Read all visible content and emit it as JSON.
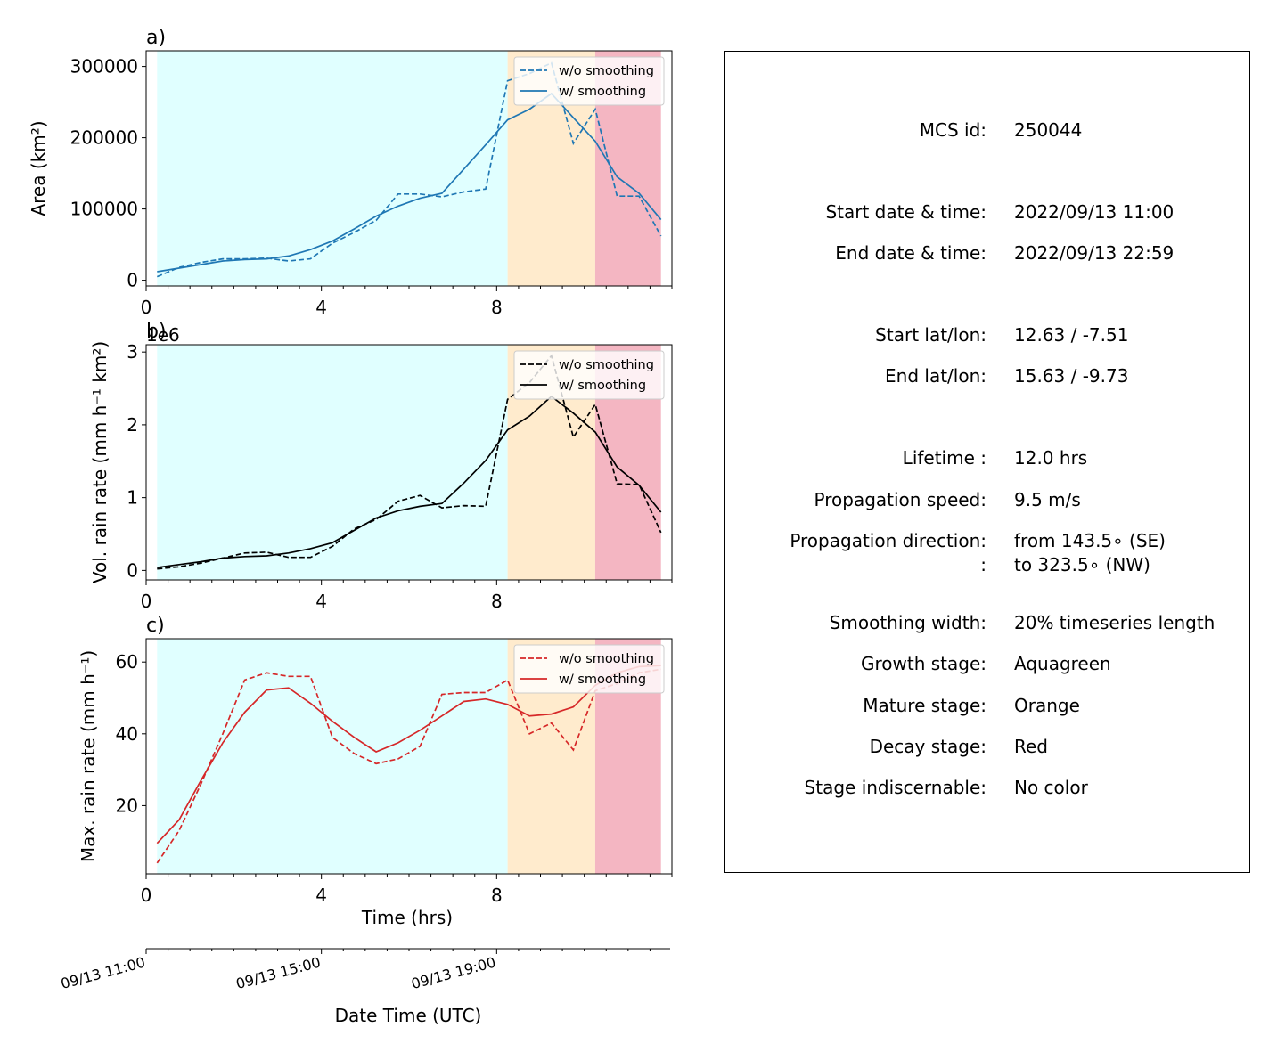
{
  "figure": {
    "time_axis": {
      "label": "Time (hrs)",
      "ticks": [
        0,
        4,
        8
      ],
      "lim": [
        0,
        12
      ]
    },
    "date_axis": {
      "label": "Date Time (UTC)",
      "ticks": [
        "09/13 11:00",
        "09/13 15:00",
        "09/13 19:00"
      ]
    },
    "stages": [
      {
        "name": "Growth stage",
        "color_name": "Aquagreen",
        "start": 0.25,
        "end": 8.25,
        "color": "#e0ffff"
      },
      {
        "name": "Mature stage",
        "color_name": "Orange",
        "start": 8.25,
        "end": 10.25,
        "color": "#ffebcd"
      },
      {
        "name": "Decay stage",
        "color_name": "Red",
        "start": 10.25,
        "end": 11.75,
        "color": "#f4b6c2"
      }
    ]
  },
  "info": {
    "rows": [
      {
        "label": "MCS id:",
        "value": "250044"
      },
      {
        "label": "Start date & time:",
        "value": "2022/09/13 11:00"
      },
      {
        "label": "End date & time:",
        "value": "2022/09/13 22:59"
      },
      {
        "label": "Start lat/lon:",
        "value": "12.63 / -7.51"
      },
      {
        "label": "End lat/lon:",
        "value": "15.63 / -9.73"
      },
      {
        "label": "Lifetime :",
        "value": "12.0 hrs"
      },
      {
        "label": "Propagation speed:",
        "value": "9.5 m/s"
      },
      {
        "label": "Propagation direction:",
        "value": "from 143.5∘ (SE)"
      },
      {
        "label": ":",
        "value": "to   323.5∘ (NW)"
      },
      {
        "label": "Smoothing width:",
        "value": "20% timeseries length"
      },
      {
        "label": "Growth stage:",
        "value": "Aquagreen"
      },
      {
        "label": "Mature stage:",
        "value": "Orange"
      },
      {
        "label": "Decay stage:",
        "value": "Red"
      },
      {
        "label": "Stage indiscernable:",
        "value": "No color"
      }
    ]
  },
  "chart_data": [
    {
      "type": "line",
      "panel_label": "a)",
      "ylabel": "Area  (km²)",
      "ylim": [
        -8000,
        322000
      ],
      "yticks": [
        0,
        100000,
        200000,
        300000
      ],
      "ytick_labels": [
        "0",
        "100000",
        "200000",
        "300000"
      ],
      "offset_label": "",
      "color": "#1f77b4",
      "x": [
        0.25,
        0.75,
        1.25,
        1.75,
        2.25,
        2.75,
        3.25,
        3.75,
        4.25,
        4.75,
        5.25,
        5.75,
        6.25,
        6.75,
        7.25,
        7.75,
        8.25,
        8.75,
        9.25,
        9.75,
        10.25,
        10.75,
        11.25,
        11.75
      ],
      "series": [
        {
          "name": "w/o smoothing",
          "style": "dashed",
          "values": [
            5000,
            18000,
            25000,
            30000,
            30000,
            31000,
            27000,
            30000,
            52000,
            67000,
            84000,
            121000,
            121000,
            117000,
            124000,
            128000,
            280000,
            290000,
            305000,
            192000,
            240000,
            118000,
            118000,
            62000
          ]
        },
        {
          "name": "w/ smoothing",
          "style": "solid",
          "values": [
            12000,
            17000,
            22000,
            27000,
            29000,
            30000,
            34000,
            43000,
            55000,
            72000,
            90000,
            104000,
            115000,
            122000,
            156000,
            190000,
            225000,
            240000,
            262000,
            228000,
            195000,
            145000,
            122000,
            85000
          ]
        }
      ]
    },
    {
      "type": "line",
      "panel_label": "b)",
      "ylabel": "Vol. rain rate (mm h⁻¹ km²)",
      "ylim": [
        -0.13,
        3.1
      ],
      "yticks": [
        0,
        1,
        2,
        3
      ],
      "ytick_labels": [
        "0",
        "1",
        "2",
        "3"
      ],
      "offset_label": "1e6",
      "color": "#000000",
      "x": [
        0.25,
        0.75,
        1.25,
        1.75,
        2.25,
        2.75,
        3.25,
        3.75,
        4.25,
        4.75,
        5.25,
        5.75,
        6.25,
        6.75,
        7.25,
        7.75,
        8.25,
        8.75,
        9.25,
        9.75,
        10.25,
        10.75,
        11.25,
        11.75
      ],
      "series": [
        {
          "name": "w/o smoothing",
          "style": "dashed",
          "values": [
            0.02,
            0.05,
            0.1,
            0.17,
            0.24,
            0.25,
            0.18,
            0.18,
            0.33,
            0.57,
            0.7,
            0.95,
            1.03,
            0.86,
            0.89,
            0.88,
            2.35,
            2.58,
            2.95,
            1.83,
            2.28,
            1.19,
            1.18,
            0.52
          ]
        },
        {
          "name": "w/ smoothing",
          "style": "solid",
          "values": [
            0.04,
            0.08,
            0.12,
            0.17,
            0.19,
            0.2,
            0.24,
            0.3,
            0.38,
            0.55,
            0.72,
            0.82,
            0.88,
            0.92,
            1.2,
            1.51,
            1.93,
            2.12,
            2.39,
            2.16,
            1.9,
            1.42,
            1.17,
            0.8
          ]
        }
      ]
    },
    {
      "type": "line",
      "panel_label": "c)",
      "ylabel": "Max. rain rate  (mm h⁻¹)",
      "ylim": [
        1,
        66.5
      ],
      "yticks": [
        20,
        40,
        60
      ],
      "ytick_labels": [
        "20",
        "40",
        "60"
      ],
      "offset_label": "",
      "color": "#d62728",
      "x": [
        0.25,
        0.75,
        1.25,
        1.75,
        2.25,
        2.75,
        3.25,
        3.75,
        4.25,
        4.75,
        5.25,
        5.75,
        6.25,
        6.75,
        7.25,
        7.75,
        8.25,
        8.75,
        9.25,
        9.75,
        10.25,
        10.75,
        11.25,
        11.75
      ],
      "series": [
        {
          "name": "w/o smoothing",
          "style": "dashed",
          "values": [
            4,
            13,
            26,
            40,
            55,
            57,
            56,
            56,
            39,
            34.5,
            31.7,
            33,
            36.5,
            51,
            51.5,
            51.5,
            55,
            40,
            43,
            35.5,
            52,
            54,
            57,
            58
          ]
        },
        {
          "name": "w/ smoothing",
          "style": "solid",
          "values": [
            9.5,
            16,
            27,
            37.5,
            46,
            52.2,
            52.8,
            48.5,
            43.5,
            39,
            35,
            37.5,
            41,
            45,
            49,
            49.7,
            48.2,
            45,
            45.5,
            47.5,
            53.5,
            57,
            58.7,
            59
          ]
        }
      ]
    }
  ]
}
